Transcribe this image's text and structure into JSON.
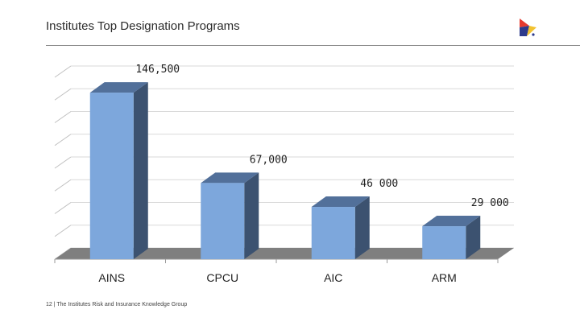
{
  "slide": {
    "title": "Institutes Top Designation Programs",
    "footer": "12 | The Institutes Risk and Insurance Knowledge Group"
  },
  "logo": {
    "icon": "triangle-arrow-logo-icon",
    "colors": [
      "#e63a2e",
      "#2d3a8c",
      "#f2c230"
    ]
  },
  "chart_data": {
    "type": "bar",
    "style": "3d-column",
    "categories": [
      "AINS",
      "CPCU",
      "AIC",
      "ARM"
    ],
    "values": [
      146500,
      67000,
      46000,
      29000
    ],
    "data_labels": [
      "146,500",
      "67,000",
      "46 000",
      "29 000"
    ],
    "ylim": [
      0,
      160000
    ],
    "grid": true,
    "colors": {
      "bar_front": "#7da7dc",
      "bar_side": "#3c5270",
      "bar_top": "#52709a",
      "floor": "#7f7f7f"
    }
  }
}
